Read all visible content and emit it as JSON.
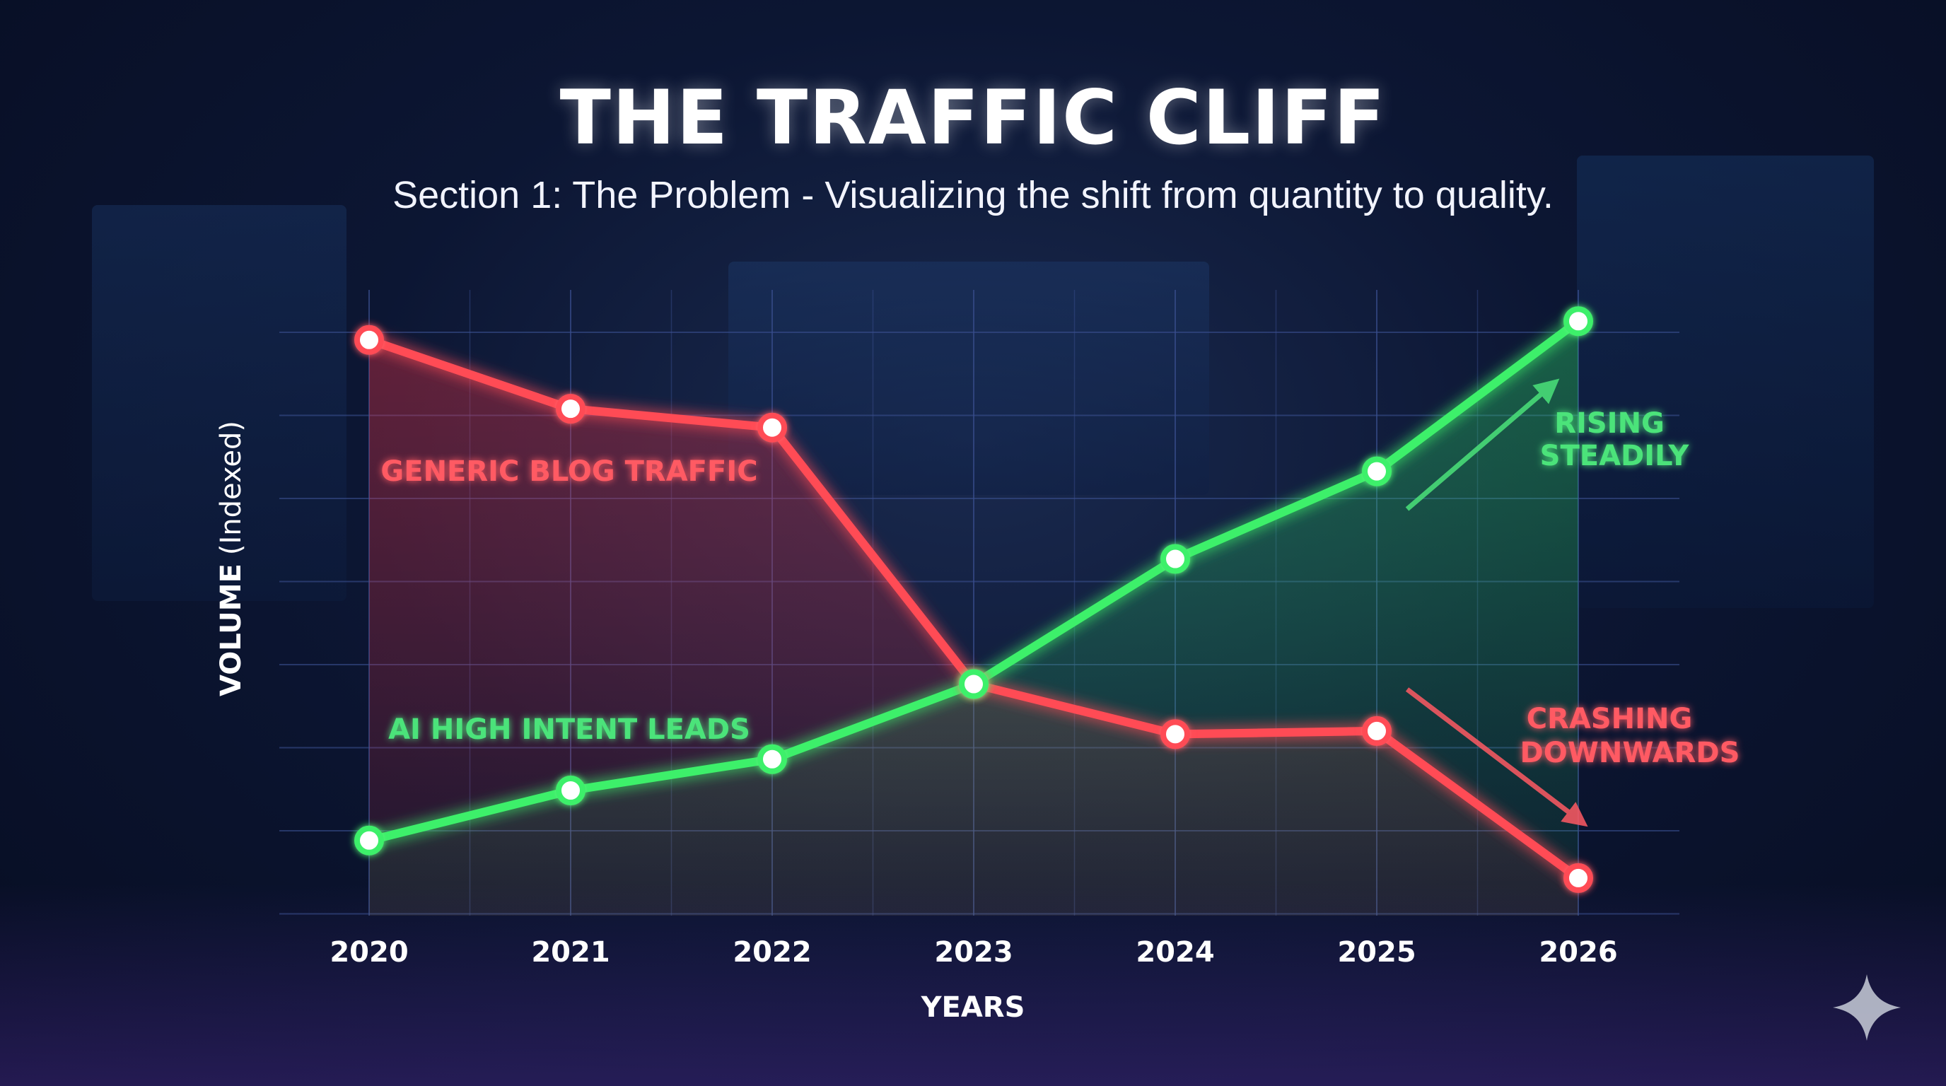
{
  "header": {
    "title": "THE TRAFFIC CLIFF",
    "subtitle": "Section 1: The Problem - Visualizing the shift from quantity to quality."
  },
  "colors": {
    "background": "#0c1633",
    "axis": "#3fb4ff",
    "grid": "#3a4f8f",
    "generic_series": "#ff4b55",
    "ai_series": "#3df06a"
  },
  "chart_data": {
    "type": "line",
    "title": "THE TRAFFIC CLIFF",
    "subtitle": "Section 1: The Problem - Visualizing the shift from quantity to quality.",
    "xlabel": "YEARS",
    "ylabel_bold": "VOLUME",
    "ylabel_unit": "(Indexed)",
    "categories": [
      "2020",
      "2021",
      "2022",
      "2023",
      "2024",
      "2025",
      "2026"
    ],
    "ylim": [
      0,
      100
    ],
    "grid": true,
    "series": [
      {
        "name": "GENERIC BLOG TRAFFIC",
        "color": "#ff4b55",
        "values": [
          92,
          81,
          78,
          37,
          29,
          29.5,
          6
        ]
      },
      {
        "name": "AI HIGH INTENT LEADS",
        "color": "#3df06a",
        "values": [
          12,
          20,
          25,
          37,
          57,
          71,
          95
        ]
      }
    ],
    "annotations": [
      {
        "text": [
          "RISING",
          "STEADILY"
        ],
        "color": "#4be37a",
        "arrow": "up"
      },
      {
        "text": [
          "CRASHING",
          "DOWNWARDS"
        ],
        "color": "#ff5a63",
        "arrow": "down"
      }
    ]
  }
}
